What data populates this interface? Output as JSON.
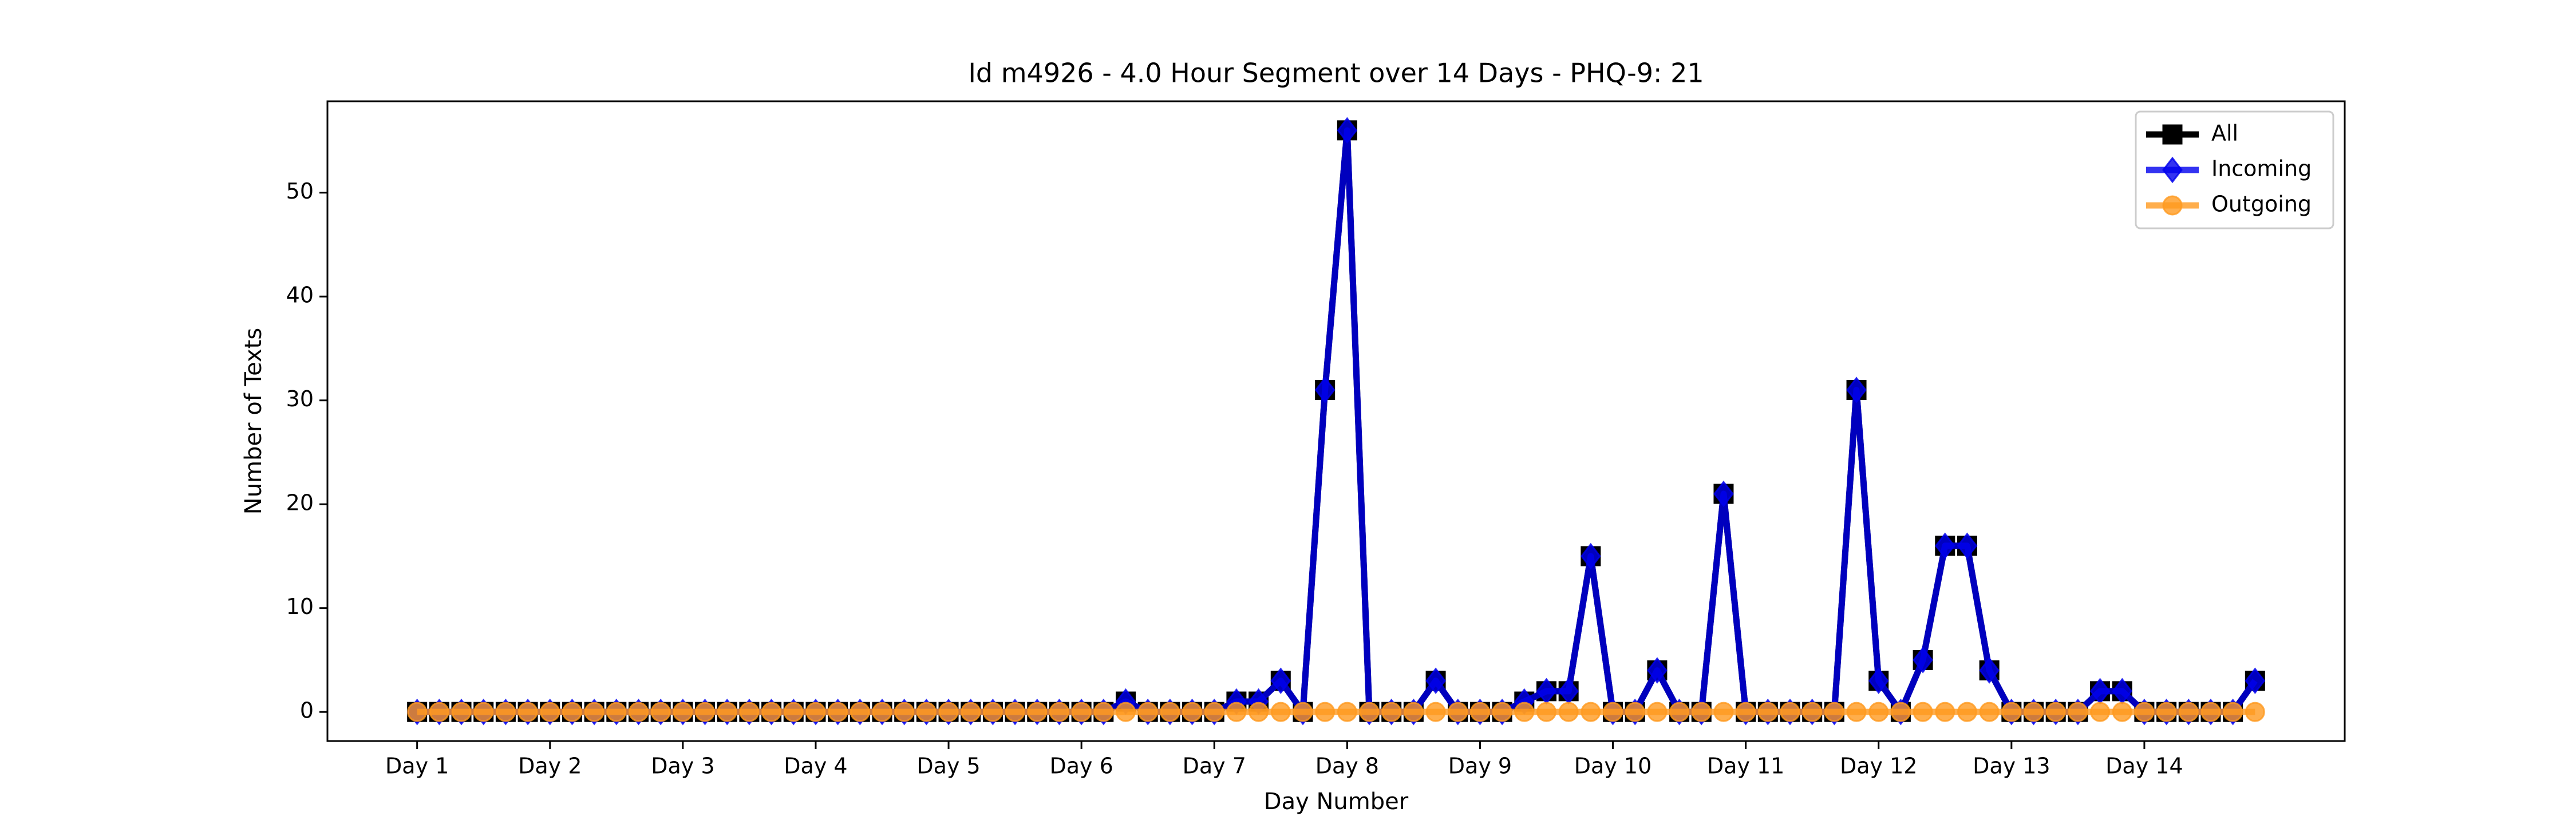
{
  "chart_data": {
    "type": "line",
    "title": "Id m4926 - 4.0 Hour Segment over 14 Days - PHQ-9: 21",
    "xlabel": "Day Number",
    "ylabel": "Number of Texts",
    "categories": [
      "Day 1",
      null,
      null,
      null,
      null,
      null,
      "Day 2",
      null,
      null,
      null,
      null,
      null,
      "Day 3",
      null,
      null,
      null,
      null,
      null,
      "Day 4",
      null,
      null,
      null,
      null,
      null,
      "Day 5",
      null,
      null,
      null,
      null,
      null,
      "Day 6",
      null,
      null,
      null,
      null,
      null,
      "Day 7",
      null,
      null,
      null,
      null,
      null,
      "Day 8",
      null,
      null,
      null,
      null,
      null,
      "Day 9",
      null,
      null,
      null,
      null,
      null,
      "Day 10",
      null,
      null,
      null,
      null,
      null,
      "Day 11",
      null,
      null,
      null,
      null,
      null,
      "Day 12",
      null,
      null,
      null,
      null,
      null,
      "Day 13",
      null,
      null,
      null,
      null,
      null,
      "Day 14",
      null,
      null,
      null,
      null,
      null
    ],
    "series": [
      {
        "name": "All",
        "color": "#000000",
        "marker": "square",
        "values": [
          0,
          0,
          0,
          0,
          0,
          0,
          0,
          0,
          0,
          0,
          0,
          0,
          0,
          0,
          0,
          0,
          0,
          0,
          0,
          0,
          0,
          0,
          0,
          0,
          0,
          0,
          0,
          0,
          0,
          0,
          0,
          0,
          1,
          0,
          0,
          0,
          0,
          1,
          1,
          3,
          0,
          31,
          56,
          0,
          0,
          0,
          3,
          0,
          0,
          0,
          1,
          2,
          2,
          15,
          0,
          0,
          4,
          0,
          0,
          21,
          0,
          0,
          0,
          0,
          0,
          31,
          3,
          0,
          5,
          16,
          16,
          4,
          0,
          0,
          0,
          0,
          2,
          2,
          0,
          0,
          0,
          0,
          0,
          3
        ]
      },
      {
        "name": "Incoming",
        "color": "#0000ee",
        "marker": "diamond",
        "values": [
          0,
          0,
          0,
          0,
          0,
          0,
          0,
          0,
          0,
          0,
          0,
          0,
          0,
          0,
          0,
          0,
          0,
          0,
          0,
          0,
          0,
          0,
          0,
          0,
          0,
          0,
          0,
          0,
          0,
          0,
          0,
          0,
          1,
          0,
          0,
          0,
          0,
          1,
          1,
          3,
          0,
          31,
          56,
          0,
          0,
          0,
          3,
          0,
          0,
          0,
          1,
          2,
          2,
          15,
          0,
          0,
          4,
          0,
          0,
          21,
          0,
          0,
          0,
          0,
          0,
          31,
          3,
          0,
          5,
          16,
          16,
          4,
          0,
          0,
          0,
          0,
          2,
          2,
          0,
          0,
          0,
          0,
          0,
          3
        ]
      },
      {
        "name": "Outgoing",
        "color": "#ff9a1f",
        "marker": "circle",
        "values": [
          0,
          0,
          0,
          0,
          0,
          0,
          0,
          0,
          0,
          0,
          0,
          0,
          0,
          0,
          0,
          0,
          0,
          0,
          0,
          0,
          0,
          0,
          0,
          0,
          0,
          0,
          0,
          0,
          0,
          0,
          0,
          0,
          0,
          0,
          0,
          0,
          0,
          0,
          0,
          0,
          0,
          0,
          0,
          0,
          0,
          0,
          0,
          0,
          0,
          0,
          0,
          0,
          0,
          0,
          0,
          0,
          0,
          0,
          0,
          0,
          0,
          0,
          0,
          0,
          0,
          0,
          0,
          0,
          0,
          0,
          0,
          0,
          0,
          0,
          0,
          0,
          0,
          0,
          0,
          0,
          0,
          0,
          0,
          0
        ]
      }
    ],
    "ylim": [
      -2.8,
      58.8
    ],
    "yticks": [
      0,
      10,
      20,
      30,
      40,
      50
    ],
    "legend": "upper right"
  }
}
